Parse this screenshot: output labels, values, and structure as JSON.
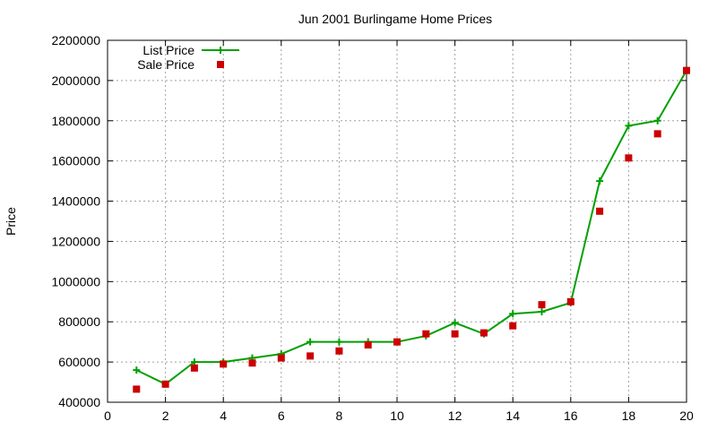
{
  "chart_data": {
    "type": "line",
    "title": "Jun 2001 Burlingame Home Prices",
    "xlabel": "",
    "ylabel": "Price",
    "xlim": [
      0,
      20
    ],
    "ylim": [
      400000,
      2200000
    ],
    "xticks": [
      0,
      2,
      4,
      6,
      8,
      10,
      12,
      14,
      16,
      18,
      20
    ],
    "yticks": [
      400000,
      600000,
      800000,
      1000000,
      1200000,
      1400000,
      1600000,
      1800000,
      2000000,
      2200000
    ],
    "grid": true,
    "legend_position": "top-left",
    "series": [
      {
        "name": "List Price",
        "style": "linespoints",
        "color": "#00a000",
        "x": [
          1,
          2,
          3,
          4,
          5,
          6,
          7,
          8,
          9,
          10,
          11,
          12,
          13,
          14,
          15,
          16,
          17,
          18,
          19,
          20
        ],
        "values": [
          560000,
          490000,
          600000,
          600000,
          620000,
          640000,
          700000,
          700000,
          700000,
          700000,
          730000,
          795000,
          740000,
          840000,
          850000,
          895000,
          1500000,
          1775000,
          1800000,
          2050000
        ]
      },
      {
        "name": "Sale Price",
        "style": "points",
        "color": "#cc0000",
        "x": [
          1,
          2,
          3,
          4,
          5,
          6,
          7,
          8,
          9,
          10,
          11,
          12,
          13,
          14,
          15,
          16,
          17,
          18,
          19,
          20
        ],
        "values": [
          465000,
          490000,
          570000,
          590000,
          595000,
          620000,
          630000,
          655000,
          685000,
          700000,
          740000,
          740000,
          745000,
          780000,
          885000,
          900000,
          1350000,
          1615000,
          1735000,
          2050000
        ]
      }
    ]
  }
}
